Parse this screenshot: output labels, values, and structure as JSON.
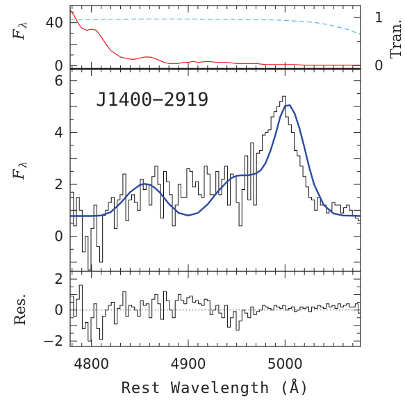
{
  "chart_data": [
    {
      "panel": "top",
      "type": "line",
      "ylabel": "F",
      "ylabel_sub": "λ",
      "ylabel_right": "Tran.",
      "xlim": [
        4778,
        5078
      ],
      "ylim": [
        -3,
        56
      ],
      "yticks": [
        "0",
        "40"
      ],
      "yticks_right": [
        "0",
        "1"
      ],
      "right_ylim": [
        -0.07,
        1.25
      ],
      "colors": {
        "red": "#e41a1c",
        "blue_dash": "#5ab4e6"
      },
      "series": [
        {
          "style": "red-solid",
          "x": [
            4778,
            4782,
            4786,
            4790,
            4795,
            4800,
            4805,
            4810,
            4815,
            4820,
            4825,
            4830,
            4835,
            4840,
            4845,
            4850,
            4855,
            4860,
            4865,
            4870,
            4875,
            4880,
            4885,
            4890,
            4895,
            4900,
            4905,
            4910,
            4920,
            4930,
            4940,
            4950,
            4960,
            4970,
            4980,
            4990,
            5000,
            5010,
            5020,
            5030,
            5040,
            5050,
            5060,
            5070,
            5078
          ],
          "values": [
            52,
            47,
            40,
            35,
            33,
            34,
            33,
            27,
            20,
            14,
            11,
            8,
            7,
            6,
            6,
            7,
            8,
            8,
            7,
            5,
            3,
            2,
            2,
            2,
            3,
            3,
            4,
            3,
            4,
            3,
            3,
            2,
            2,
            2,
            1,
            1,
            1,
            1,
            0.5,
            0.5,
            0.5,
            0.5,
            0.5,
            0.5,
            0.5
          ]
        },
        {
          "style": "blue-dashed",
          "x": [
            4778,
            4785,
            4800,
            4850,
            4900,
            4950,
            4990,
            5010,
            5030,
            5045,
            5055,
            5065,
            5078
          ],
          "values": [
            0.97,
            0.95,
            0.96,
            0.97,
            0.97,
            0.96,
            0.95,
            0.93,
            0.9,
            0.85,
            0.8,
            0.75,
            0.65
          ]
        }
      ]
    },
    {
      "panel": "main",
      "type": "line",
      "title": "J1400−2919",
      "ylabel": "F",
      "ylabel_sub": "λ",
      "xlim": [
        4778,
        5078
      ],
      "ylim": [
        -1.35,
        6.45
      ],
      "yticks": [
        "0",
        "2",
        "4",
        "6"
      ],
      "colors": {
        "data": "#111111",
        "model": "#2b4aa0"
      },
      "series": [
        {
          "style": "black-step",
          "x": [
            4780,
            4783,
            4786,
            4789,
            4792,
            4795,
            4798,
            4801,
            4804,
            4807,
            4810,
            4813,
            4816,
            4819,
            4822,
            4825,
            4828,
            4831,
            4834,
            4837,
            4840,
            4843,
            4846,
            4849,
            4852,
            4855,
            4858,
            4861,
            4864,
            4867,
            4870,
            4873,
            4876,
            4879,
            4882,
            4885,
            4888,
            4891,
            4894,
            4897,
            4900,
            4903,
            4906,
            4909,
            4912,
            4915,
            4918,
            4921,
            4924,
            4927,
            4930,
            4933,
            4936,
            4939,
            4942,
            4945,
            4948,
            4951,
            4954,
            4957,
            4960,
            4963,
            4966,
            4969,
            4972,
            4975,
            4978,
            4981,
            4984,
            4987,
            4990,
            4993,
            4996,
            4999,
            5002,
            5005,
            5008,
            5011,
            5014,
            5017,
            5020,
            5023,
            5026,
            5029,
            5032,
            5035,
            5038,
            5041,
            5044,
            5047,
            5050,
            5053,
            5056,
            5059,
            5062,
            5065,
            5068,
            5071,
            5074,
            5077
          ],
          "values": [
            1.7,
            0.4,
            1.5,
            1.0,
            -0.6,
            0.0,
            -1.3,
            0.3,
            1.2,
            -0.4,
            -1.0,
            0.8,
            1.0,
            1.3,
            1.5,
            0.3,
            1.4,
            1.6,
            2.4,
            0.6,
            1.4,
            1.6,
            1.3,
            1.0,
            2.2,
            1.8,
            2.0,
            1.2,
            2.3,
            2.7,
            2.0,
            0.7,
            2.5,
            2.1,
            1.6,
            0.4,
            1.2,
            2.0,
            1.5,
            1.5,
            2.6,
            2.5,
            1.9,
            2.1,
            1.6,
            1.5,
            2.7,
            2.4,
            1.6,
            1.6,
            2.5,
            1.6,
            2.2,
            2.7,
            1.2,
            2.4,
            2.3,
            1.3,
            0.4,
            1.8,
            3.1,
            1.4,
            3.6,
            1.2,
            3.2,
            3.3,
            3.9,
            4.0,
            4.1,
            4.6,
            4.8,
            5.0,
            5.2,
            5.4,
            4.6,
            4.3,
            4.0,
            3.3,
            3.1,
            2.7,
            2.3,
            1.9,
            1.5,
            1.4,
            1.0,
            1.5,
            1.2,
            1.2,
            0.9,
            1.0,
            1.3,
            1.2,
            1.2,
            0.9,
            1.1,
            1.2,
            1.0,
            0.8,
            0.7,
            0.6
          ]
        },
        {
          "style": "blue-smooth",
          "x": [
            4778,
            4790,
            4800,
            4810,
            4820,
            4830,
            4840,
            4850,
            4855,
            4860,
            4865,
            4870,
            4880,
            4890,
            4900,
            4910,
            4920,
            4930,
            4940,
            4945,
            4950,
            4955,
            4960,
            4965,
            4970,
            4975,
            4980,
            4985,
            4990,
            4995,
            5000,
            5005,
            5010,
            5015,
            5020,
            5025,
            5030,
            5040,
            5050,
            5060,
            5078
          ],
          "values": [
            0.78,
            0.78,
            0.78,
            0.8,
            0.93,
            1.28,
            1.7,
            1.98,
            2.02,
            1.99,
            1.88,
            1.71,
            1.25,
            0.9,
            0.8,
            0.9,
            1.23,
            1.7,
            2.1,
            2.25,
            2.33,
            2.35,
            2.35,
            2.37,
            2.42,
            2.55,
            2.83,
            3.3,
            3.9,
            4.6,
            5.02,
            5.05,
            4.72,
            4.15,
            3.42,
            2.65,
            2.0,
            1.2,
            0.88,
            0.8,
            0.78
          ]
        }
      ]
    },
    {
      "panel": "bottom",
      "type": "line",
      "ylabel": "Res.",
      "xlabel": "Rest Wavelength (Å)",
      "xlim": [
        4778,
        5078
      ],
      "ylim": [
        -2.35,
        2.5
      ],
      "xticks": [
        "4800",
        "4900",
        "5000"
      ],
      "yticks": [
        "−2",
        "0",
        "2"
      ],
      "series": [
        {
          "style": "black-step",
          "x": [
            4780,
            4783,
            4786,
            4789,
            4792,
            4795,
            4798,
            4801,
            4804,
            4807,
            4810,
            4813,
            4816,
            4819,
            4822,
            4825,
            4828,
            4831,
            4834,
            4837,
            4840,
            4843,
            4846,
            4849,
            4852,
            4855,
            4858,
            4861,
            4864,
            4867,
            4870,
            4873,
            4876,
            4879,
            4882,
            4885,
            4888,
            4891,
            4894,
            4897,
            4900,
            4903,
            4906,
            4909,
            4912,
            4915,
            4918,
            4921,
            4924,
            4927,
            4930,
            4933,
            4936,
            4939,
            4942,
            4945,
            4948,
            4951,
            4954,
            4957,
            4960,
            4963,
            4966,
            4969,
            4972,
            4975,
            4978,
            4981,
            4984,
            4987,
            4990,
            4993,
            4996,
            4999,
            5002,
            5005,
            5008,
            5011,
            5014,
            5017,
            5020,
            5023,
            5026,
            5029,
            5032,
            5035,
            5038,
            5041,
            5044,
            5047,
            5050,
            5053,
            5056,
            5059,
            5062,
            5065,
            5068,
            5071,
            5074,
            5077
          ],
          "values": [
            0.9,
            -0.4,
            0.7,
            1.6,
            -1.2,
            -0.8,
            -2.0,
            -0.5,
            0.4,
            -1.2,
            -1.9,
            -0.4,
            0.0,
            0.3,
            0.5,
            -0.9,
            0.1,
            0.3,
            1.2,
            -0.4,
            0.3,
            0.2,
            0.0,
            -0.4,
            0.6,
            0.3,
            0.4,
            -0.5,
            0.7,
            1.0,
            0.4,
            -0.6,
            1.2,
            0.6,
            0.0,
            -0.5,
            0.6,
            1.0,
            0.6,
            0.4,
            0.8,
            0.9,
            0.5,
            0.6,
            0.4,
            0.3,
            0.7,
            0.6,
            -0.3,
            0.0,
            0.3,
            -0.2,
            -0.5,
            0.3,
            -1.1,
            -0.5,
            -0.1,
            -1.3,
            -0.7,
            0.0,
            -0.2,
            -0.5,
            0.2,
            -0.3,
            -0.1,
            0.0,
            0.3,
            0.2,
            0.1,
            0.0,
            0.3,
            0.2,
            0.1,
            0.3,
            0.0,
            0.1,
            0.2,
            -0.1,
            0.0,
            0.2,
            0.1,
            0.2,
            -0.1,
            0.2,
            0.1,
            0.3,
            0.2,
            0.1,
            0.4,
            0.2,
            0.3,
            0.1,
            0.4,
            0.2,
            0.3,
            0.4,
            0.2,
            0.2,
            0.4,
            -0.2
          ]
        }
      ]
    }
  ]
}
